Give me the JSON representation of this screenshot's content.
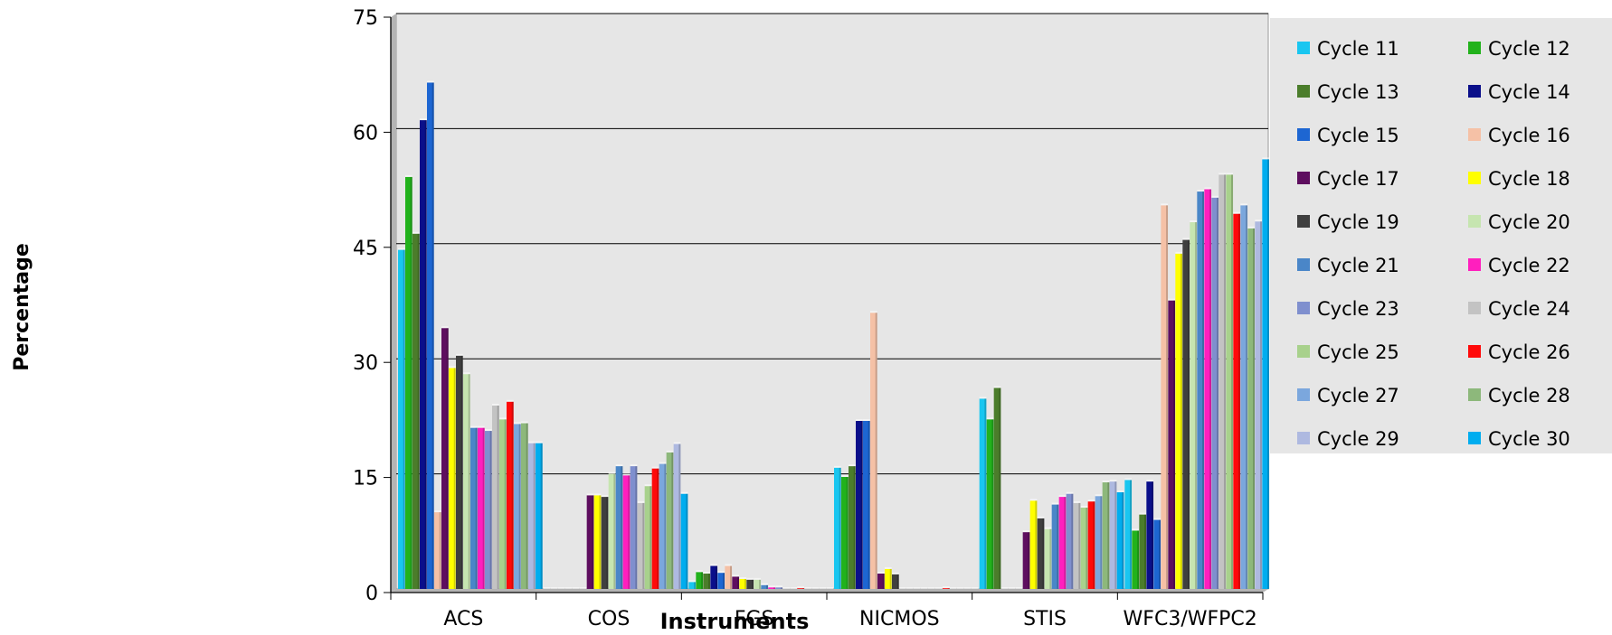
{
  "chart_data": {
    "type": "bar",
    "xlabel": "Instruments",
    "ylabel": "Percentage",
    "ylim": [
      0,
      75
    ],
    "yticks": [
      "0",
      "15",
      "30",
      "45",
      "60",
      "75"
    ],
    "grid": true,
    "legend_position": "right",
    "categories": [
      "ACS",
      "COS",
      "FGS",
      "NICMOS",
      "STIS",
      "WFC3/WFPC2"
    ],
    "series": [
      {
        "name": "Cycle 11",
        "color": "#19C6F0",
        "values": [
          44.2,
          0.0,
          0.9,
          15.8,
          24.8,
          14.2
        ]
      },
      {
        "name": "Cycle 12",
        "color": "#22B21C",
        "values": [
          53.7,
          0.0,
          2.2,
          14.6,
          22.1,
          7.6
        ]
      },
      {
        "name": "Cycle 13",
        "color": "#4B7D2B",
        "values": [
          46.3,
          0.0,
          2.0,
          16.0,
          26.2,
          9.7
        ]
      },
      {
        "name": "Cycle 14",
        "color": "#0A0F8A",
        "values": [
          61.1,
          0.0,
          3.0,
          21.9,
          0.0,
          14.0
        ]
      },
      {
        "name": "Cycle 15",
        "color": "#1D66D2",
        "values": [
          66.0,
          0.0,
          2.1,
          21.9,
          0.0,
          9.0
        ]
      },
      {
        "name": "Cycle 16",
        "color": "#F5C1A6",
        "values": [
          10.0,
          0.0,
          3.0,
          36.0,
          0.0,
          50.0
        ]
      },
      {
        "name": "Cycle 17",
        "color": "#5E0E5F",
        "values": [
          34.0,
          12.2,
          1.6,
          2.0,
          7.4,
          37.6
        ]
      },
      {
        "name": "Cycle 18",
        "color": "#FFFF00",
        "values": [
          28.8,
          12.2,
          1.3,
          2.6,
          11.5,
          43.7
        ]
      },
      {
        "name": "Cycle 19",
        "color": "#3F3F3F",
        "values": [
          30.4,
          12.0,
          1.2,
          1.9,
          9.2,
          45.5
        ]
      },
      {
        "name": "Cycle 20",
        "color": "#C6E5B0",
        "values": [
          28.0,
          15.0,
          1.2,
          0.0,
          7.8,
          47.8
        ]
      },
      {
        "name": "Cycle 21",
        "color": "#4A86C8",
        "values": [
          21.0,
          16.0,
          0.5,
          0.0,
          11.0,
          51.8
        ]
      },
      {
        "name": "Cycle 22",
        "color": "#FF1FBE",
        "values": [
          21.0,
          14.8,
          0.2,
          0.0,
          12.0,
          52.1
        ]
      },
      {
        "name": "Cycle 23",
        "color": "#7F8FCE",
        "values": [
          20.6,
          16.0,
          0.2,
          0.0,
          12.4,
          51.0
        ]
      },
      {
        "name": "Cycle 24",
        "color": "#C3C3C3",
        "values": [
          23.9,
          11.2,
          0.0,
          0.0,
          11.2,
          54.0
        ]
      },
      {
        "name": "Cycle 25",
        "color": "#A8D18C",
        "values": [
          22.1,
          13.4,
          0.0,
          0.0,
          10.6,
          54.0
        ]
      },
      {
        "name": "Cycle 26",
        "color": "#FF0A0A",
        "values": [
          24.4,
          15.7,
          0.1,
          0.1,
          11.4,
          48.9
        ]
      },
      {
        "name": "Cycle 27",
        "color": "#7BA7DD",
        "values": [
          21.5,
          16.3,
          0.0,
          0.0,
          12.1,
          50.0
        ]
      },
      {
        "name": "Cycle 28",
        "color": "#8DB87B",
        "values": [
          21.6,
          17.8,
          0.0,
          0.0,
          13.9,
          47.0
        ]
      },
      {
        "name": "Cycle 29",
        "color": "#AEB9E0",
        "values": [
          19.0,
          18.9,
          0.0,
          0.0,
          14.0,
          47.9
        ]
      },
      {
        "name": "Cycle 30",
        "color": "#00ADEF",
        "values": [
          19.0,
          12.4,
          0.0,
          0.0,
          12.6,
          56.0
        ]
      }
    ]
  }
}
